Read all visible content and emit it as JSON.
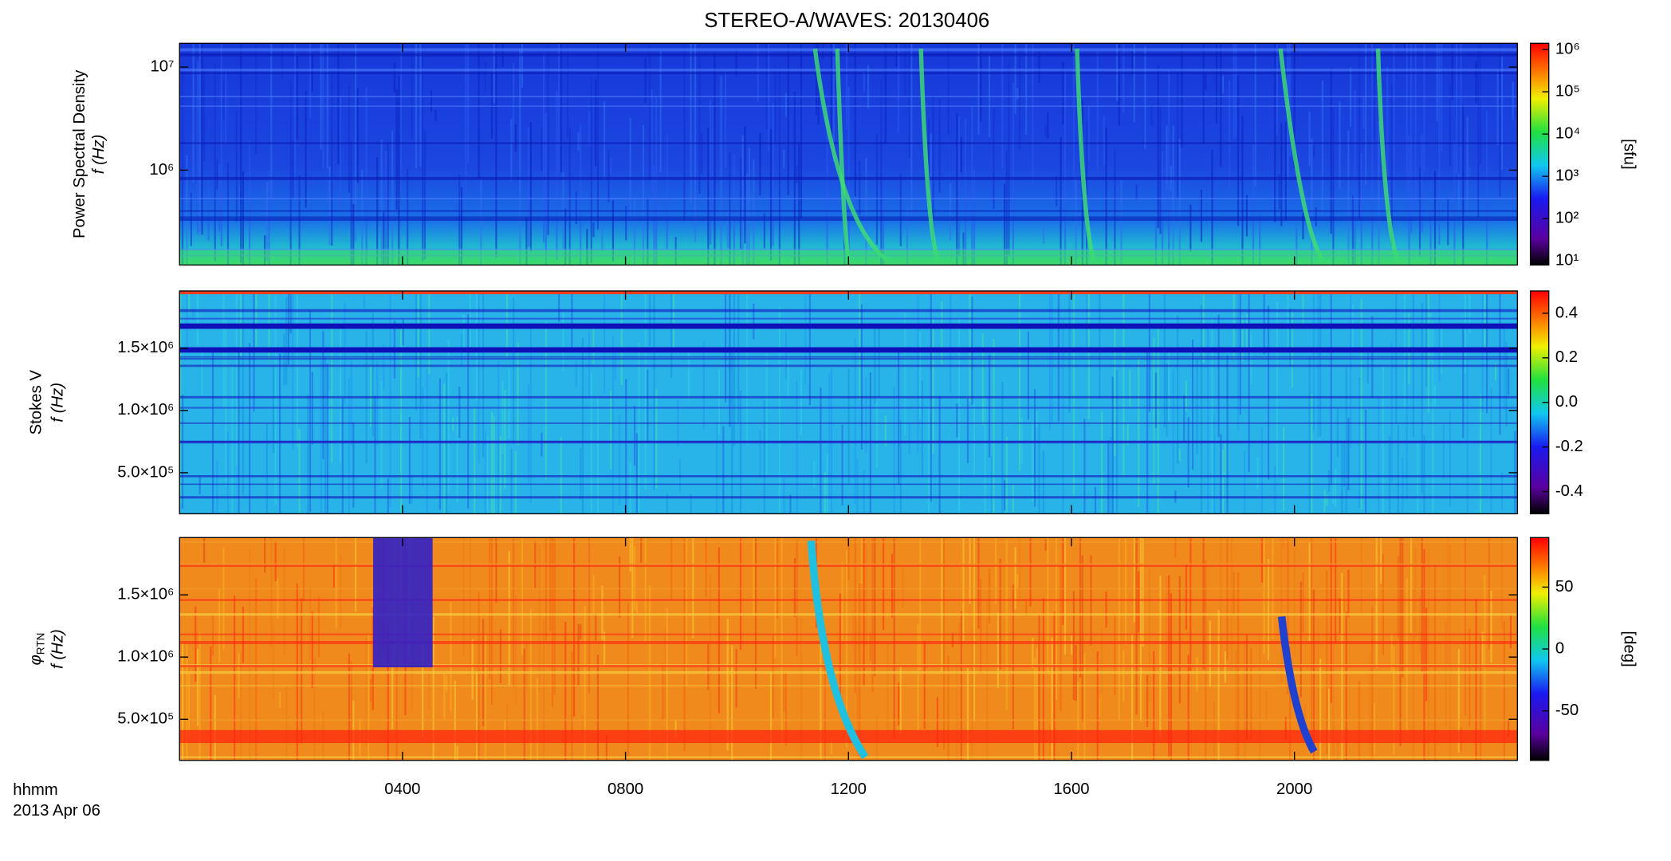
{
  "title": "STEREO-A/WAVES: 20130406",
  "x_axis": {
    "label": "hhmm",
    "date": "2013 Apr 06",
    "xlim": [
      0,
      24
    ],
    "xticks": [
      {
        "value": 4,
        "label": "0400"
      },
      {
        "value": 8,
        "label": "0800"
      },
      {
        "value": 12,
        "label": "1200"
      },
      {
        "value": 16,
        "label": "1600"
      },
      {
        "value": 20,
        "label": "2000"
      }
    ]
  },
  "chart_data": [
    {
      "type": "spectrogram",
      "ylabel": "Power Spectral Density",
      "ylabel2": "f (Hz)",
      "log": true,
      "ylim": [
        120000,
        17000000
      ],
      "yticks": [
        {
          "value": 1000000,
          "label": "10⁶"
        },
        {
          "value": 10000000,
          "label": "10⁷"
        }
      ],
      "colorbar": {
        "label": "[sfu]",
        "log": true,
        "lim": [
          8,
          1400000
        ],
        "ticks": [
          {
            "value": 10,
            "label": "10¹"
          },
          {
            "value": 100,
            "label": "10²"
          },
          {
            "value": 1000,
            "label": "10³"
          },
          {
            "value": 10000,
            "label": "10⁴"
          },
          {
            "value": 100000,
            "label": "10⁵"
          },
          {
            "value": 1000000,
            "label": "10⁶"
          }
        ]
      }
    },
    {
      "type": "spectrogram",
      "ylabel_symbol": "Stokes V",
      "ylabel2": "f (Hz)",
      "log": false,
      "ylim": [
        170000,
        1960000
      ],
      "yticks": [
        {
          "value": 500000,
          "label": "5.0×10⁵"
        },
        {
          "value": 1000000,
          "label": "1.0×10⁶"
        },
        {
          "value": 1500000,
          "label": "1.5×10⁶"
        }
      ],
      "colorbar": {
        "log": false,
        "lim": [
          -0.5,
          0.5
        ],
        "ticks": [
          {
            "value": -0.4,
            "label": "-0.4"
          },
          {
            "value": -0.2,
            "label": "-0.2"
          },
          {
            "value": 0,
            "label": "0.0"
          },
          {
            "value": 0.2,
            "label": "0.2"
          },
          {
            "value": 0.4,
            "label": "0.4"
          }
        ]
      }
    },
    {
      "type": "spectrogram",
      "ylabel_symbol": "φ",
      "ylabel_subscript": "RTN",
      "ylabel2": "f (Hz)",
      "log": false,
      "ylim": [
        170000,
        1960000
      ],
      "yticks": [
        {
          "value": 500000,
          "label": "5.0×10⁵"
        },
        {
          "value": 1000000,
          "label": "1.0×10⁶"
        },
        {
          "value": 1500000,
          "label": "1.5×10⁶"
        }
      ],
      "colorbar": {
        "label": "[deg]",
        "log": false,
        "lim": [
          -90,
          90
        ],
        "ticks": [
          -50,
          0,
          50
        ]
      }
    }
  ]
}
